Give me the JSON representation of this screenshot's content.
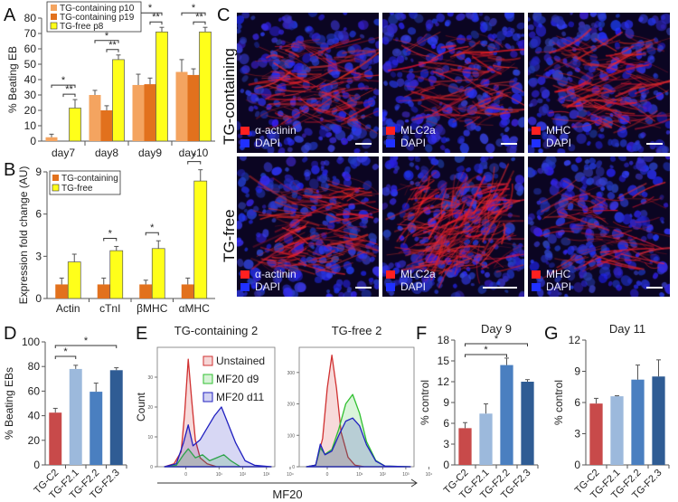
{
  "figure": {
    "panels": [
      "A",
      "B",
      "C",
      "D",
      "E",
      "F",
      "G"
    ]
  },
  "colors": {
    "tg_containing_p10": "#f4a460",
    "tg_containing_p19": "#e2711d",
    "tg_free": "#ffff1a",
    "tg_c2": "#c84a4a",
    "tg_f21": "#9cb9dc",
    "tg_f22": "#4a7fc0",
    "tg_f23": "#2f5c94",
    "unstained": "#d03030",
    "mf20_d9": "#30c030",
    "mf20_d11": "#2020c0"
  },
  "microscopy": {
    "row_labels": [
      "TG-containing",
      "TG-free"
    ],
    "panels": [
      {
        "row": 0,
        "col": 0,
        "stain": "α-actinin",
        "counter": "DAPI",
        "scale": "short"
      },
      {
        "row": 0,
        "col": 1,
        "stain": "MLC2a",
        "counter": "DAPI",
        "scale": "short"
      },
      {
        "row": 0,
        "col": 2,
        "stain": "MHC",
        "counter": "DAPI",
        "scale": "short"
      },
      {
        "row": 1,
        "col": 0,
        "stain": "α-actinin",
        "counter": "DAPI",
        "scale": "short"
      },
      {
        "row": 1,
        "col": 1,
        "stain": "MLC2a",
        "counter": "DAPI",
        "scale": "long"
      },
      {
        "row": 1,
        "col": 2,
        "stain": "MHC",
        "counter": "DAPI",
        "scale": "short"
      }
    ]
  },
  "chart_data": [
    {
      "id": "A",
      "type": "bar",
      "title": "",
      "xlabel": "",
      "ylabel": "% Beating EB",
      "ylim": [
        0,
        80
      ],
      "yticks": [
        0,
        10,
        20,
        30,
        40,
        50,
        60,
        70,
        80
      ],
      "categories": [
        "day7",
        "day8",
        "day9",
        "day10"
      ],
      "legend_position": "top-left",
      "series": [
        {
          "name": "TG-containing p10",
          "color_key": "tg_containing_p10",
          "values": [
            2.5,
            30,
            36.5,
            45
          ],
          "errors": [
            2,
            3,
            7,
            8
          ]
        },
        {
          "name": "TG-containing p19",
          "color_key": "tg_containing_p19",
          "values": [
            0,
            20,
            37,
            43
          ],
          "errors": [
            0,
            3,
            4,
            4
          ]
        },
        {
          "name": "TG-free p8",
          "color_key": "tg_free",
          "values": [
            21.5,
            53,
            71,
            71
          ],
          "errors": [
            5.5,
            3,
            3,
            3
          ]
        }
      ],
      "significance": [
        {
          "category": 0,
          "from": 0,
          "to": 2,
          "label": "*"
        },
        {
          "category": 0,
          "from": 1,
          "to": 2,
          "label": "**"
        },
        {
          "category": 1,
          "from": 0,
          "to": 2,
          "label": "*"
        },
        {
          "category": 1,
          "from": 1,
          "to": 2,
          "label": "**"
        },
        {
          "category": 2,
          "from": 0,
          "to": 2,
          "label": "*"
        },
        {
          "category": 2,
          "from": 1,
          "to": 2,
          "label": "**"
        },
        {
          "category": 3,
          "from": 0,
          "to": 2,
          "label": "*"
        },
        {
          "category": 3,
          "from": 1,
          "to": 2,
          "label": "**"
        }
      ]
    },
    {
      "id": "B",
      "type": "bar",
      "title": "",
      "xlabel": "",
      "ylabel": "Expression fold change (AU)",
      "ylim": [
        0,
        9
      ],
      "yticks": [
        0,
        3,
        6,
        9
      ],
      "categories": [
        "Actin",
        "cTnI",
        "βMHC",
        "αMHC"
      ],
      "legend_position": "top-left",
      "series": [
        {
          "name": "TG-containing",
          "color_key": "tg_containing_p19",
          "values": [
            1,
            1,
            1,
            1
          ],
          "errors": [
            0.45,
            0.45,
            0.3,
            0.45
          ]
        },
        {
          "name": "TG-free",
          "color_key": "tg_free",
          "values": [
            2.6,
            3.4,
            3.55,
            8.35
          ],
          "errors": [
            0.55,
            0.3,
            0.55,
            0.8
          ]
        }
      ],
      "significance": [
        {
          "category": 1,
          "from": 0,
          "to": 1,
          "label": "*"
        },
        {
          "category": 2,
          "from": 0,
          "to": 1,
          "label": "*"
        },
        {
          "category": 3,
          "from": 0,
          "to": 1,
          "label": "*"
        }
      ]
    },
    {
      "id": "D",
      "type": "bar",
      "title": "",
      "xlabel": "",
      "ylabel": "% Beating EBs",
      "ylim": [
        0,
        100
      ],
      "yticks": [
        0,
        20,
        40,
        60,
        80,
        100
      ],
      "categories": [
        "TG-C2",
        "TG-F2.1",
        "TG-F2.2",
        "TG-F2.3"
      ],
      "color_keys": [
        "tg_c2",
        "tg_f21",
        "tg_f22",
        "tg_f23"
      ],
      "values": [
        42.5,
        78,
        59.5,
        77
      ],
      "errors": [
        3.5,
        3,
        7,
        2
      ],
      "significance": [
        {
          "from": 0,
          "to": 1,
          "label": "*"
        },
        {
          "from": 0,
          "to": 3,
          "label": "*"
        }
      ]
    },
    {
      "id": "E",
      "type": "area",
      "xlabel": "MF20",
      "ylabel": "Count",
      "subplots": [
        {
          "title": "TG-containing 2",
          "ylim": [
            0,
            40
          ],
          "yticks": [
            0,
            10,
            20,
            30
          ],
          "xticks": [
            "0",
            "10¹",
            "10²",
            "10³",
            "10⁴"
          ],
          "legend": [
            "Unstained",
            "MF20 d9",
            "MF20 d11"
          ],
          "series": [
            {
              "name": "Unstained",
              "color_key": "unstained",
              "x": [
                0,
                0.4,
                0.7,
                0.85,
                1.0,
                1.15,
                1.3,
                1.5,
                1.8,
                2.2,
                4.5
              ],
              "y": [
                0,
                1,
                5,
                18,
                36,
                22,
                9,
                3,
                1,
                0,
                0
              ]
            },
            {
              "name": "MF20 d9",
              "color_key": "mf20_d9",
              "x": [
                0,
                0.5,
                0.8,
                1.0,
                1.3,
                1.6,
                1.9,
                2.2,
                2.5,
                2.8,
                3.2,
                4.5
              ],
              "y": [
                0,
                0.5,
                4,
                6,
                3,
                4,
                2,
                3,
                4,
                2,
                0,
                0
              ]
            },
            {
              "name": "MF20 d11",
              "color_key": "mf20_d11",
              "x": [
                0,
                0.5,
                0.8,
                1.0,
                1.2,
                1.5,
                1.8,
                2.1,
                2.4,
                2.7,
                3.0,
                3.4,
                3.8,
                4.5
              ],
              "y": [
                0,
                1,
                8,
                14,
                7,
                9,
                13,
                17,
                20,
                14,
                8,
                2,
                0.5,
                0
              ]
            }
          ]
        },
        {
          "title": "TG-free 2",
          "ylim": [
            0,
            380
          ],
          "yticks": [
            0,
            100,
            200,
            300
          ],
          "xticks": [
            "0",
            "10¹",
            "10²",
            "10³",
            "10⁴"
          ],
          "series": [
            {
              "name": "Unstained",
              "color_key": "unstained",
              "x": [
                0,
                0.4,
                0.7,
                0.9,
                1.1,
                1.3,
                1.5,
                1.8,
                2.1,
                2.5,
                4.5
              ],
              "y": [
                0,
                5,
                90,
                250,
                355,
                250,
                110,
                30,
                5,
                0,
                0
              ]
            },
            {
              "name": "MF20 d9",
              "color_key": "mf20_d9",
              "x": [
                0,
                0.4,
                0.6,
                0.8,
                1.1,
                1.4,
                1.7,
                2.0,
                2.3,
                2.6,
                3.0,
                3.4,
                4.5
              ],
              "y": [
                0,
                5,
                60,
                40,
                55,
                120,
                200,
                230,
                170,
                80,
                20,
                2,
                0
              ]
            },
            {
              "name": "MF20 d11",
              "color_key": "mf20_d11",
              "x": [
                0,
                0.4,
                0.6,
                0.8,
                1.1,
                1.4,
                1.7,
                2.0,
                2.3,
                2.6,
                3.0,
                3.4,
                4.5
              ],
              "y": [
                0,
                5,
                72,
                38,
                50,
                100,
                145,
                155,
                130,
                70,
                18,
                2,
                0
              ]
            }
          ]
        }
      ]
    },
    {
      "id": "F",
      "type": "bar",
      "title": "Day 9",
      "xlabel": "",
      "ylabel": "% control",
      "ylim": [
        0,
        18
      ],
      "yticks": [
        0,
        3,
        6,
        9,
        12,
        15,
        18
      ],
      "categories": [
        "TG-C2",
        "TG-F2.1",
        "TG-F2.2",
        "TG-F2.3"
      ],
      "color_keys": [
        "tg_c2",
        "tg_f21",
        "tg_f22",
        "tg_f23"
      ],
      "values": [
        5.3,
        7.4,
        14.4,
        12.0
      ],
      "errors": [
        0.8,
        1.4,
        1.0,
        0.3
      ],
      "significance": [
        {
          "from": 0,
          "to": 2,
          "label": "*"
        },
        {
          "from": 0,
          "to": 3,
          "label": "*"
        }
      ]
    },
    {
      "id": "G",
      "type": "bar",
      "title": "Day 11",
      "xlabel": "",
      "ylabel": "% control",
      "ylim": [
        0,
        12
      ],
      "yticks": [
        0,
        3,
        6,
        9,
        12
      ],
      "categories": [
        "TG-C2",
        "TG-F2.1",
        "TG-F2.2",
        "TG-F2.3"
      ],
      "color_keys": [
        "tg_c2",
        "tg_f21",
        "tg_f22",
        "tg_f23"
      ],
      "values": [
        5.9,
        6.6,
        8.2,
        8.5
      ],
      "errors": [
        0.5,
        0.05,
        1.4,
        1.6
      ],
      "significance": []
    }
  ]
}
